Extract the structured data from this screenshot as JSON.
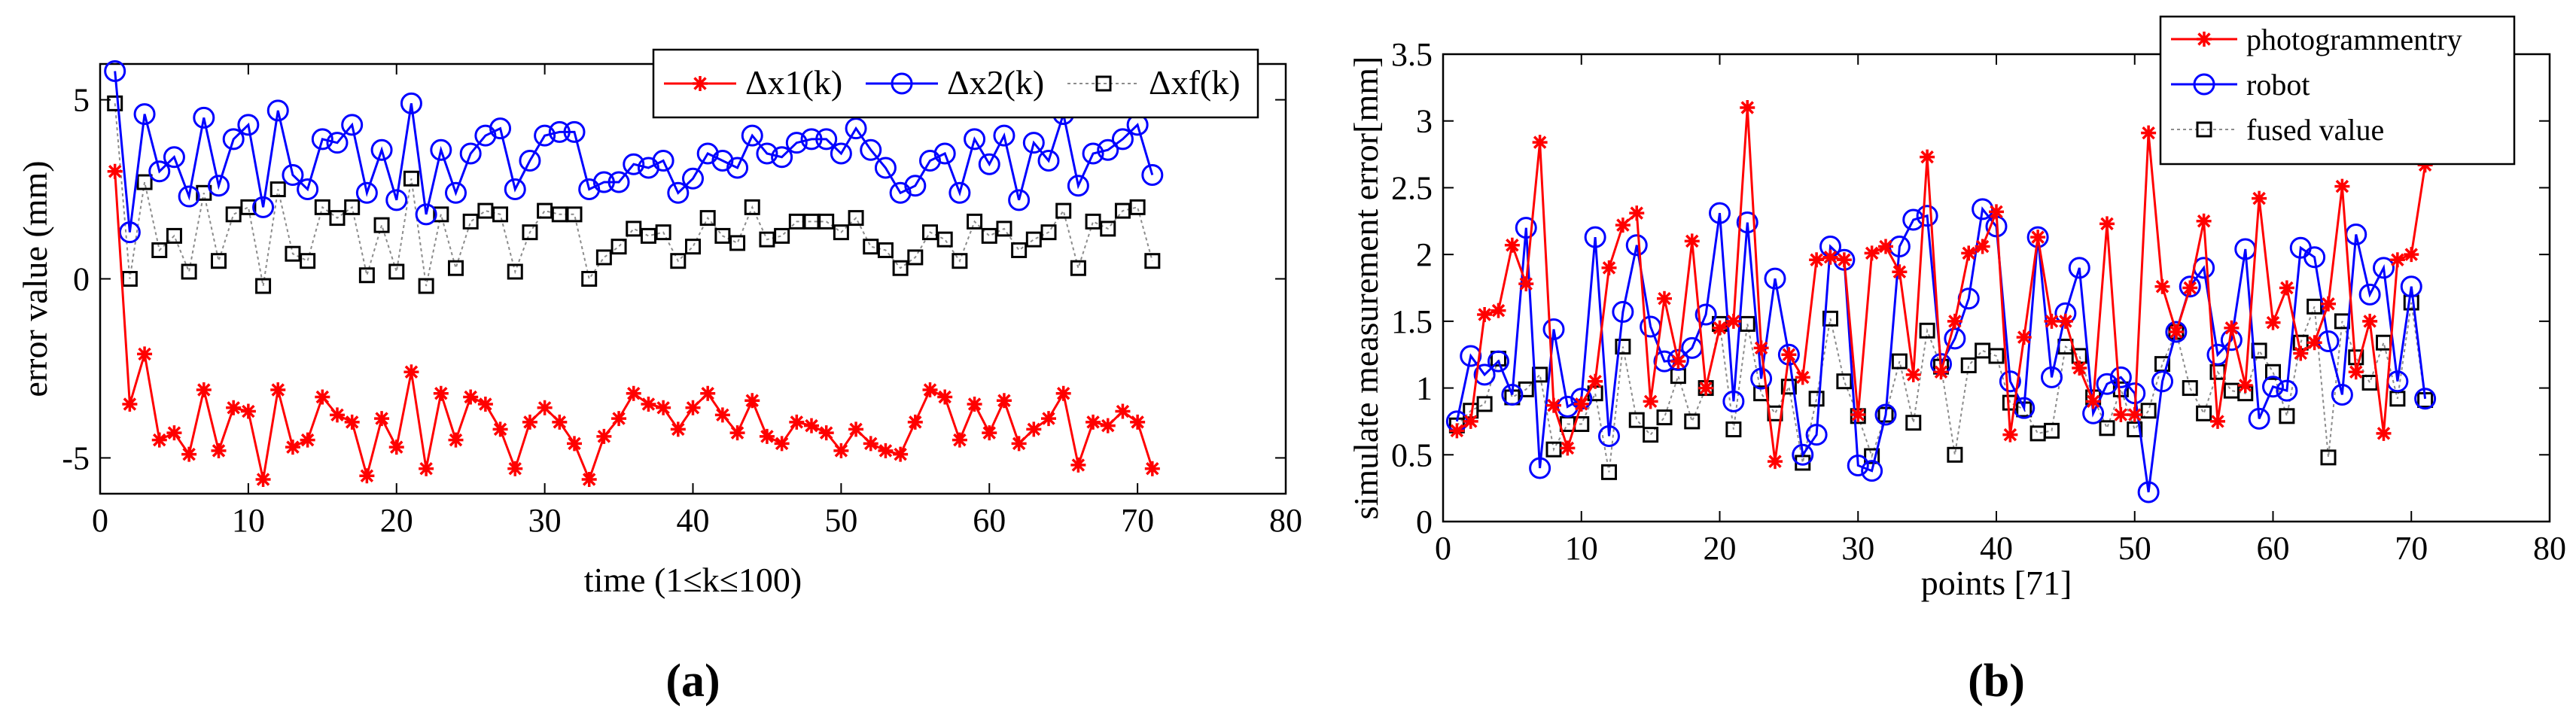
{
  "charts": [
    {
      "id": "a",
      "panel_label": "(a)",
      "panel_letter": "a",
      "chart_data": {
        "type": "line",
        "title": "",
        "xlabel": "time (1≤k≤100)",
        "ylabel": "error value (mm)",
        "xlim": [
          0,
          80
        ],
        "ylim": [
          -6,
          6
        ],
        "xticks": [
          0,
          10,
          20,
          30,
          40,
          50,
          60,
          70,
          80
        ],
        "yticks": [
          -5,
          0,
          5
        ],
        "grid": false,
        "legend_position": "top-right",
        "legend_layout": "horizontal",
        "series": [
          {
            "name": "Δx1(k)",
            "color": "#ff0000",
            "marker": "star",
            "dashed": false,
            "x": [
              1,
              2,
              3,
              4,
              5,
              6,
              7,
              8,
              9,
              10,
              11,
              12,
              13,
              14,
              15,
              16,
              17,
              18,
              19,
              20,
              21,
              22,
              23,
              24,
              25,
              26,
              27,
              28,
              29,
              30,
              31,
              32,
              33,
              34,
              35,
              36,
              37,
              38,
              39,
              40,
              41,
              42,
              43,
              44,
              45,
              46,
              47,
              48,
              49,
              50,
              51,
              52,
              53,
              54,
              55,
              56,
              57,
              58,
              59,
              60,
              61,
              62,
              63,
              64,
              65,
              66,
              67,
              68,
              69,
              70,
              71
            ],
            "y": [
              3.0,
              -3.5,
              -2.1,
              -4.5,
              -4.3,
              -4.9,
              -3.1,
              -4.8,
              -3.6,
              -3.7,
              -5.6,
              -3.1,
              -4.7,
              -4.5,
              -3.3,
              -3.8,
              -4.0,
              -5.5,
              -3.9,
              -4.7,
              -2.6,
              -5.3,
              -3.2,
              -4.5,
              -3.3,
              -3.5,
              -4.2,
              -5.3,
              -4.0,
              -3.6,
              -4.0,
              -4.6,
              -5.6,
              -4.4,
              -3.9,
              -3.2,
              -3.5,
              -3.6,
              -4.2,
              -3.6,
              -3.2,
              -3.8,
              -4.3,
              -3.4,
              -4.4,
              -4.6,
              -4.0,
              -4.1,
              -4.3,
              -4.8,
              -4.2,
              -4.6,
              -4.8,
              -4.9,
              -4.0,
              -3.1,
              -3.3,
              -4.5,
              -3.5,
              -4.3,
              -3.4,
              -4.6,
              -4.2,
              -3.9,
              -3.2,
              -5.2,
              -4.0,
              -4.1,
              -3.7,
              -4.0,
              -5.3
            ]
          },
          {
            "name": "Δx2(k)",
            "color": "#0000ff",
            "marker": "circle",
            "dashed": false,
            "x": [
              1,
              2,
              3,
              4,
              5,
              6,
              7,
              8,
              9,
              10,
              11,
              12,
              13,
              14,
              15,
              16,
              17,
              18,
              19,
              20,
              21,
              22,
              23,
              24,
              25,
              26,
              27,
              28,
              29,
              30,
              31,
              32,
              33,
              34,
              35,
              36,
              37,
              38,
              39,
              40,
              41,
              42,
              43,
              44,
              45,
              46,
              47,
              48,
              49,
              50,
              51,
              52,
              53,
              54,
              55,
              56,
              57,
              58,
              59,
              60,
              61,
              62,
              63,
              64,
              65,
              66,
              67,
              68,
              69,
              70,
              71
            ],
            "y": [
              5.8,
              1.3,
              4.6,
              3.0,
              3.4,
              2.3,
              4.5,
              2.6,
              3.9,
              4.3,
              2.0,
              4.7,
              2.9,
              2.5,
              3.9,
              3.8,
              4.3,
              2.4,
              3.6,
              2.2,
              4.9,
              1.8,
              3.6,
              2.4,
              3.5,
              4.0,
              4.2,
              2.5,
              3.3,
              4.0,
              4.1,
              4.1,
              2.5,
              2.7,
              2.7,
              3.2,
              3.1,
              3.3,
              2.4,
              2.8,
              3.5,
              3.3,
              3.1,
              4.0,
              3.5,
              3.4,
              3.8,
              3.9,
              3.9,
              3.5,
              4.2,
              3.6,
              3.1,
              2.4,
              2.6,
              3.3,
              3.5,
              2.4,
              3.9,
              3.2,
              4.0,
              2.2,
              3.8,
              3.3,
              4.6,
              2.6,
              3.5,
              3.6,
              3.9,
              4.3,
              2.9
            ]
          },
          {
            "name": "Δxf(k)",
            "color": "#8c8c8c",
            "marker": "square",
            "dashed": true,
            "x": [
              1,
              2,
              3,
              4,
              5,
              6,
              7,
              8,
              9,
              10,
              11,
              12,
              13,
              14,
              15,
              16,
              17,
              18,
              19,
              20,
              21,
              22,
              23,
              24,
              25,
              26,
              27,
              28,
              29,
              30,
              31,
              32,
              33,
              34,
              35,
              36,
              37,
              38,
              39,
              40,
              41,
              42,
              43,
              44,
              45,
              46,
              47,
              48,
              49,
              50,
              51,
              52,
              53,
              54,
              55,
              56,
              57,
              58,
              59,
              60,
              61,
              62,
              63,
              64,
              65,
              66,
              67,
              68,
              69,
              70,
              71
            ],
            "y": [
              4.9,
              0.0,
              2.7,
              0.8,
              1.2,
              0.2,
              2.4,
              0.5,
              1.8,
              2.0,
              -0.2,
              2.5,
              0.7,
              0.5,
              2.0,
              1.7,
              2.0,
              0.1,
              1.5,
              0.2,
              2.8,
              -0.2,
              1.8,
              0.3,
              1.6,
              1.9,
              1.8,
              0.2,
              1.3,
              1.9,
              1.8,
              1.8,
              0.0,
              0.6,
              0.9,
              1.4,
              1.2,
              1.3,
              0.5,
              0.9,
              1.7,
              1.2,
              1.0,
              2.0,
              1.1,
              1.2,
              1.6,
              1.6,
              1.6,
              1.3,
              1.7,
              0.9,
              0.8,
              0.3,
              0.6,
              1.3,
              1.1,
              0.5,
              1.6,
              1.2,
              1.4,
              0.8,
              1.1,
              1.3,
              1.9,
              0.3,
              1.6,
              1.4,
              1.9,
              2.0,
              0.5
            ]
          }
        ]
      }
    },
    {
      "id": "b",
      "panel_label": "(b)",
      "panel_letter": "b",
      "chart_data": {
        "type": "line",
        "title": "",
        "xlabel": "points [71]",
        "ylabel": "simulate measurement error[mm]",
        "xlim": [
          0,
          80
        ],
        "ylim": [
          0,
          3.5
        ],
        "xticks": [
          0,
          10,
          20,
          30,
          40,
          50,
          60,
          70,
          80
        ],
        "yticks": [
          0,
          0.5,
          1,
          1.5,
          2,
          2.5,
          3,
          3.5
        ],
        "grid": false,
        "legend_position": "top-right",
        "legend_layout": "vertical",
        "series": [
          {
            "name": "photogrammentry",
            "color": "#ff0000",
            "marker": "star",
            "dashed": false,
            "x": [
              1,
              2,
              3,
              4,
              5,
              6,
              7,
              8,
              9,
              10,
              11,
              12,
              13,
              14,
              15,
              16,
              17,
              18,
              19,
              20,
              21,
              22,
              23,
              24,
              25,
              26,
              27,
              28,
              29,
              30,
              31,
              32,
              33,
              34,
              35,
              36,
              37,
              38,
              39,
              40,
              41,
              42,
              43,
              44,
              45,
              46,
              47,
              48,
              49,
              50,
              51,
              52,
              53,
              54,
              55,
              56,
              57,
              58,
              59,
              60,
              61,
              62,
              63,
              64,
              65,
              66,
              67,
              68,
              69,
              70,
              71
            ],
            "y": [
              0.68,
              0.75,
              1.55,
              1.58,
              2.07,
              1.78,
              2.84,
              0.87,
              0.55,
              0.88,
              1.05,
              1.9,
              2.22,
              2.31,
              0.9,
              1.67,
              1.2,
              2.1,
              1.0,
              1.45,
              1.5,
              3.1,
              1.3,
              0.45,
              1.25,
              1.08,
              1.96,
              1.98,
              1.96,
              0.8,
              2.01,
              2.06,
              1.87,
              1.1,
              2.73,
              1.12,
              1.5,
              2.01,
              2.06,
              2.32,
              0.65,
              1.38,
              2.13,
              1.5,
              1.5,
              1.15,
              0.9,
              2.23,
              0.8,
              0.8,
              2.91,
              1.76,
              1.42,
              1.75,
              2.25,
              0.75,
              1.45,
              1.02,
              2.42,
              1.49,
              1.75,
              1.26,
              1.34,
              1.63,
              2.51,
              1.12,
              1.5,
              0.66,
              1.96,
              2.0,
              2.67
            ]
          },
          {
            "name": "robot",
            "color": "#0000ff",
            "marker": "circle",
            "dashed": false,
            "x": [
              1,
              2,
              3,
              4,
              5,
              6,
              7,
              8,
              9,
              10,
              11,
              12,
              13,
              14,
              15,
              16,
              17,
              18,
              19,
              20,
              21,
              22,
              23,
              24,
              25,
              26,
              27,
              28,
              29,
              30,
              31,
              32,
              33,
              34,
              35,
              36,
              37,
              38,
              39,
              40,
              41,
              42,
              43,
              44,
              45,
              46,
              47,
              48,
              49,
              50,
              51,
              52,
              53,
              54,
              55,
              56,
              57,
              58,
              59,
              60,
              61,
              62,
              63,
              64,
              65,
              66,
              67,
              68,
              69,
              70,
              71
            ],
            "y": [
              0.75,
              1.24,
              1.1,
              1.2,
              0.95,
              2.2,
              0.4,
              1.44,
              0.86,
              0.92,
              2.13,
              0.64,
              1.57,
              2.07,
              1.46,
              1.2,
              1.21,
              1.3,
              1.55,
              2.31,
              0.9,
              2.24,
              1.07,
              1.82,
              1.25,
              0.5,
              0.65,
              2.06,
              1.96,
              0.42,
              0.38,
              0.8,
              2.06,
              2.26,
              2.29,
              1.18,
              1.37,
              1.67,
              2.34,
              2.21,
              1.05,
              0.85,
              2.13,
              1.08,
              1.56,
              1.9,
              0.81,
              1.03,
              1.08,
              0.96,
              0.22,
              1.05,
              1.42,
              1.76,
              1.9,
              1.25,
              1.36,
              2.04,
              0.77,
              1.01,
              0.98,
              2.05,
              1.98,
              1.35,
              0.95,
              2.15,
              1.7,
              1.9,
              1.05,
              1.76,
              0.92
            ]
          },
          {
            "name": "fused value",
            "color": "#8c8c8c",
            "marker": "square",
            "dashed": true,
            "x": [
              1,
              2,
              3,
              4,
              5,
              6,
              7,
              8,
              9,
              10,
              11,
              12,
              13,
              14,
              15,
              16,
              17,
              18,
              19,
              20,
              21,
              22,
              23,
              24,
              25,
              26,
              27,
              28,
              29,
              30,
              31,
              32,
              33,
              34,
              35,
              36,
              37,
              38,
              39,
              40,
              41,
              42,
              43,
              44,
              45,
              46,
              47,
              48,
              49,
              50,
              51,
              52,
              53,
              54,
              55,
              56,
              57,
              58,
              59,
              60,
              61,
              62,
              63,
              64,
              65,
              66,
              67,
              68,
              69,
              70,
              71
            ],
            "y": [
              0.72,
              0.83,
              0.88,
              1.22,
              0.93,
              0.99,
              1.1,
              0.54,
              0.73,
              0.73,
              0.96,
              0.37,
              1.31,
              0.76,
              0.65,
              0.78,
              1.09,
              0.75,
              1.0,
              1.48,
              0.69,
              1.48,
              0.96,
              0.81,
              1.01,
              0.44,
              0.92,
              1.52,
              1.05,
              0.79,
              0.49,
              0.8,
              1.2,
              0.74,
              1.43,
              1.16,
              0.5,
              1.17,
              1.28,
              1.24,
              0.89,
              0.84,
              0.66,
              0.68,
              1.31,
              1.24,
              0.93,
              0.7,
              0.99,
              0.69,
              0.83,
              1.18,
              1.42,
              1.0,
              0.81,
              1.12,
              0.98,
              0.96,
              1.28,
              1.12,
              0.79,
              1.34,
              1.61,
              0.48,
              1.5,
              1.23,
              1.04,
              1.34,
              0.92,
              1.64,
              0.91
            ]
          }
        ]
      }
    }
  ]
}
